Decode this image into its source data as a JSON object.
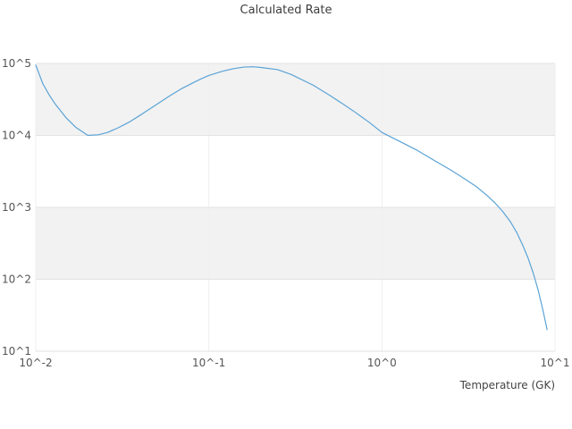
{
  "title": "Calculated Rate",
  "colors": {
    "background": "#ffffff",
    "line": "#5ba3d6",
    "band": "#f2f2f2",
    "grid": "#e3e3e3",
    "grid_vertical": "#efefef",
    "axis_edge": "#e0e0e0",
    "title_text": "#3d3d3d",
    "tick_text": "#555555",
    "axis_label_text": "#444444"
  },
  "chart_data": {
    "type": "line",
    "title": "Calculated Rate",
    "xlabel": "Temperature (GK)",
    "ylabel": "",
    "x_scale": "log",
    "y_scale": "log",
    "xlim": [
      0.01,
      10
    ],
    "ylim": [
      10,
      100000
    ],
    "grid": "horizontal-bands",
    "legend": "none",
    "x_ticks": [
      {
        "value": 0.01,
        "label": "10^-2"
      },
      {
        "value": 0.1,
        "label": "10^-1"
      },
      {
        "value": 1,
        "label": "10^0"
      },
      {
        "value": 10,
        "label": "10^1"
      }
    ],
    "y_ticks": [
      {
        "value": 100000,
        "label": "10^5"
      },
      {
        "value": 10000,
        "label": "10^4"
      },
      {
        "value": 1000,
        "label": "10^3"
      },
      {
        "value": 100,
        "label": "10^2"
      },
      {
        "value": 10,
        "label": "10^1"
      }
    ],
    "bands": [
      [
        10000,
        100000
      ],
      [
        100,
        1000
      ]
    ],
    "series": [
      {
        "name": "calculated-rate",
        "x": [
          0.01,
          0.011,
          0.012,
          0.013,
          0.015,
          0.017,
          0.02,
          0.023,
          0.026,
          0.03,
          0.035,
          0.04,
          0.05,
          0.06,
          0.07,
          0.08,
          0.09,
          0.1,
          0.12,
          0.14,
          0.16,
          0.18,
          0.2,
          0.25,
          0.3,
          0.4,
          0.5,
          0.6,
          0.7,
          0.85,
          1.0,
          1.3,
          1.6,
          2.0,
          2.5,
          3.0,
          3.5,
          4.0,
          4.5,
          5.0,
          5.5,
          6.0,
          6.5,
          7.0,
          7.5,
          8.0,
          8.5,
          9.0
        ],
        "y": [
          95000,
          52000,
          36000,
          27000,
          17500,
          13000,
          10000,
          10200,
          11000,
          12800,
          15500,
          19000,
          27000,
          36000,
          45000,
          53000,
          61000,
          68000,
          78000,
          85000,
          89000,
          90000,
          88000,
          82000,
          70000,
          50000,
          36000,
          27000,
          21000,
          15000,
          11000,
          8000,
          6200,
          4500,
          3300,
          2500,
          1950,
          1500,
          1150,
          870,
          640,
          450,
          300,
          195,
          120,
          70,
          38,
          20
        ]
      }
    ]
  }
}
